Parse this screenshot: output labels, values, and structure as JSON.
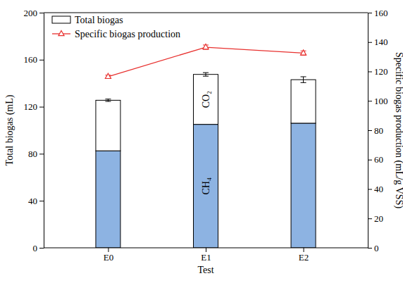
{
  "chart_data": {
    "type": "bar",
    "stacked": true,
    "categories": [
      "E0",
      "E1",
      "E2"
    ],
    "x_label": "Test",
    "y_label": "Total biogas (mL)",
    "y2_label": "Specific biogas production (mL/g VSS)",
    "ylim": [
      0,
      200
    ],
    "yticks": [
      0,
      40,
      80,
      120,
      160,
      200
    ],
    "y2lim": [
      0,
      160
    ],
    "y2ticks": [
      0,
      20,
      40,
      60,
      80,
      100,
      120,
      140,
      160
    ],
    "grid": false,
    "legend": "upper left",
    "stack_name": "Total biogas",
    "series": [
      {
        "name": "CH₄",
        "type": "bar",
        "color": "#8db3e2",
        "values": [
          82.5,
          105,
          106
        ],
        "label_category": "E1"
      },
      {
        "name": "CO₂",
        "type": "bar",
        "color": "#ffffff",
        "values": [
          43,
          42.5,
          37
        ],
        "errors": [
          1,
          1.5,
          2.5
        ],
        "label_category": "E1"
      },
      {
        "name": "Specific biogas production",
        "type": "line",
        "axis": "y2",
        "color": "#e8312f",
        "marker": "triangle",
        "values": [
          116.5,
          136.5,
          132.5
        ],
        "errors": [
          1,
          1.5,
          1.5
        ]
      }
    ]
  }
}
